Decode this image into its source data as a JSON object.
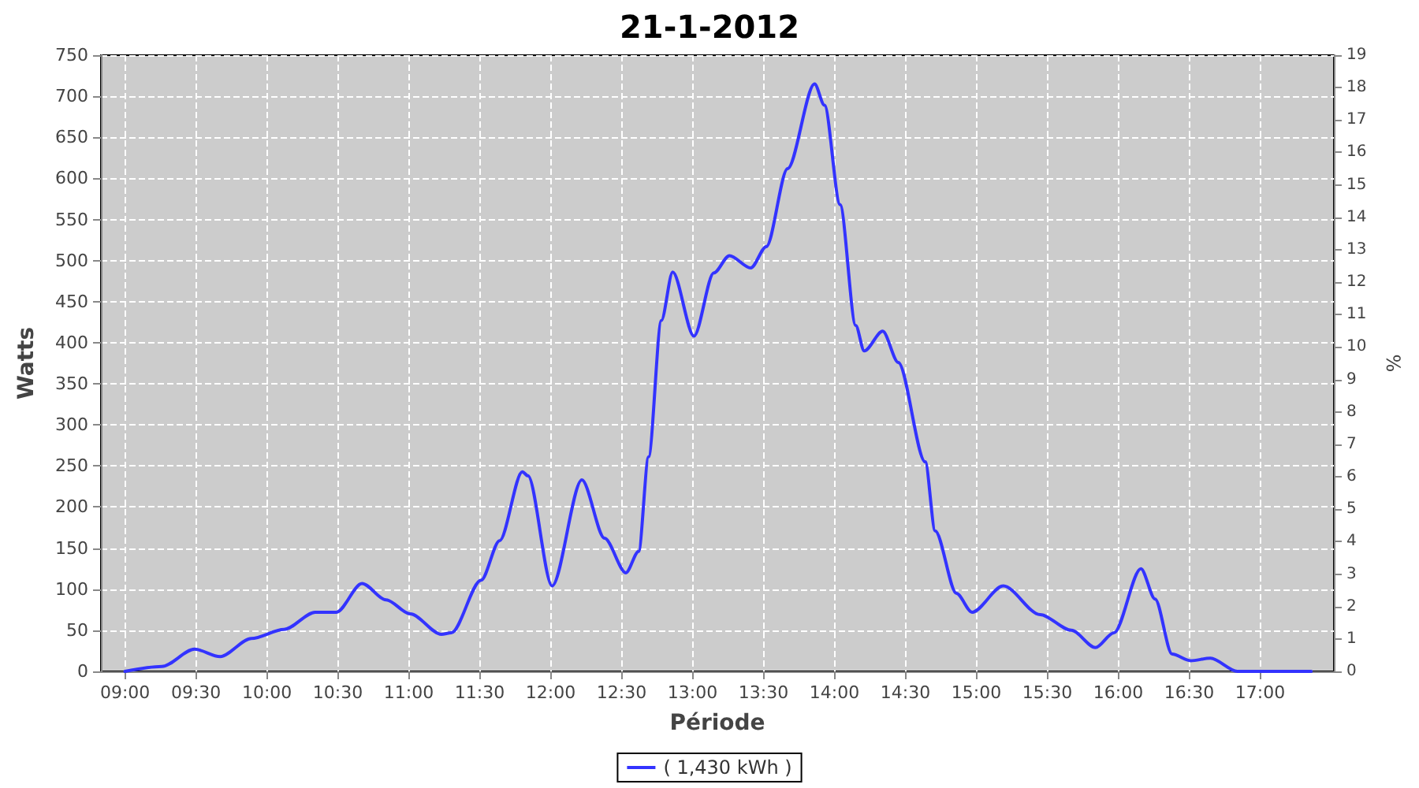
{
  "chart_data": {
    "type": "line",
    "title": "21-1-2012",
    "xlabel": "Période",
    "ylabel": "Watts",
    "y2label": "%",
    "series": [
      {
        "name": "( 1,430 kWh )",
        "color": "#3333ff",
        "x": [
          9.0,
          9.26,
          9.49,
          9.67,
          9.89,
          10.12,
          10.34,
          10.49,
          10.67,
          10.84,
          11.01,
          11.23,
          11.3,
          11.51,
          11.64,
          11.8,
          11.84,
          12.01,
          12.22,
          12.38,
          12.53,
          12.62,
          12.69,
          12.78,
          12.86,
          13.01,
          13.15,
          13.26,
          13.41,
          13.52,
          13.67,
          13.86,
          13.93,
          14.04,
          14.15,
          14.21,
          14.34,
          14.45,
          14.64,
          14.71,
          14.86,
          14.97,
          15.19,
          15.45,
          15.67,
          15.84,
          15.97,
          16.16,
          16.26,
          16.38,
          16.51,
          16.65,
          16.84,
          17.36
        ],
        "values": [
          0,
          6,
          27,
          18,
          40,
          51,
          72,
          72,
          107,
          87,
          70,
          45,
          47,
          111,
          159,
          243,
          238,
          104,
          233,
          162,
          120,
          146,
          261,
          427,
          486,
          408,
          485,
          506,
          491,
          517,
          612,
          715,
          689,
          568,
          421,
          390,
          414,
          376,
          255,
          171,
          95,
          72,
          104,
          69,
          50,
          29,
          47,
          125,
          88,
          21,
          13,
          16,
          0,
          0
        ]
      }
    ],
    "xlim": [
      8.83,
      17.52
    ],
    "xticks": [
      {
        "value": 9,
        "label": "09:00"
      },
      {
        "value": 9.5,
        "label": "09:30"
      },
      {
        "value": 10,
        "label": "10:00"
      },
      {
        "value": 10.5,
        "label": "10:30"
      },
      {
        "value": 11,
        "label": "11:00"
      },
      {
        "value": 11.5,
        "label": "11:30"
      },
      {
        "value": 12,
        "label": "12:00"
      },
      {
        "value": 12.5,
        "label": "12:30"
      },
      {
        "value": 13,
        "label": "13:00"
      },
      {
        "value": 13.5,
        "label": "13:30"
      },
      {
        "value": 14,
        "label": "14:00"
      },
      {
        "value": 14.5,
        "label": "14:30"
      },
      {
        "value": 15,
        "label": "15:00"
      },
      {
        "value": 15.5,
        "label": "15:30"
      },
      {
        "value": 16,
        "label": "16:00"
      },
      {
        "value": 16.5,
        "label": "16:30"
      },
      {
        "value": 17,
        "label": "17:00"
      }
    ],
    "ylim": [
      0,
      750
    ],
    "yticks": [
      0,
      50,
      100,
      150,
      200,
      250,
      300,
      350,
      400,
      450,
      500,
      550,
      600,
      650,
      700,
      750
    ],
    "y2lim": [
      0,
      19
    ],
    "y2ticks": [
      0,
      1,
      2,
      3,
      4,
      5,
      6,
      7,
      8,
      9,
      10,
      11,
      12,
      13,
      14,
      15,
      16,
      17,
      18,
      19
    ],
    "grid": true,
    "legend": "bottom",
    "marker": "none",
    "line_style": "solid"
  }
}
